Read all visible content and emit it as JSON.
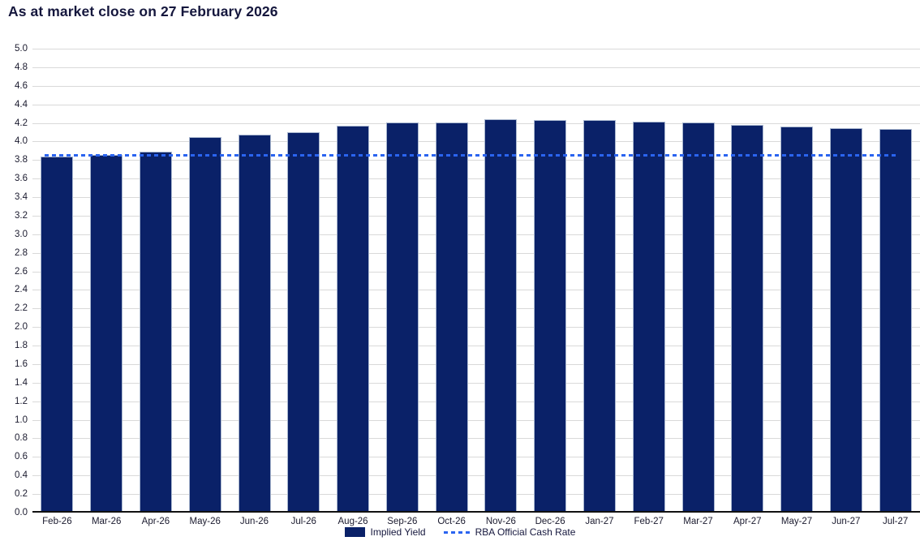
{
  "title": "As at market close on 27 February 2026",
  "chart_data": {
    "type": "bar",
    "title": "As at market close on 27 February 2026",
    "categories": [
      "Feb-26",
      "Mar-26",
      "Apr-26",
      "May-26",
      "Jun-26",
      "Jul-26",
      "Aug-26",
      "Sep-26",
      "Oct-26",
      "Nov-26",
      "Dec-26",
      "Jan-27",
      "Feb-27",
      "Mar-27",
      "Apr-27",
      "May-27",
      "Jun-27",
      "Jul-27"
    ],
    "series": [
      {
        "name": "Implied Yield",
        "type": "bar",
        "color": "#0a2168",
        "values": [
          3.82,
          3.84,
          3.87,
          4.03,
          4.06,
          4.08,
          4.15,
          4.19,
          4.19,
          4.22,
          4.21,
          4.21,
          4.2,
          4.19,
          4.16,
          4.14,
          4.13,
          4.12
        ]
      },
      {
        "name": "RBA Official Cash Rate",
        "type": "dashed-line",
        "color": "#2a64f0",
        "value": 3.85
      }
    ],
    "xlabel": "",
    "ylabel": "",
    "ylim": [
      0,
      5
    ],
    "ytick_step": 0.2,
    "ytick_decimals": 1,
    "grid": true,
    "legend_position": "bottom-center",
    "colors": {
      "bar_fill": "#0a2168",
      "bar_border": "#a9b7cf",
      "cash_rate_line": "#2a64f0",
      "gridline": "#d9d9d9",
      "axis_line": "#111111",
      "text": "#1a1a2e",
      "title": "#15173d"
    }
  }
}
